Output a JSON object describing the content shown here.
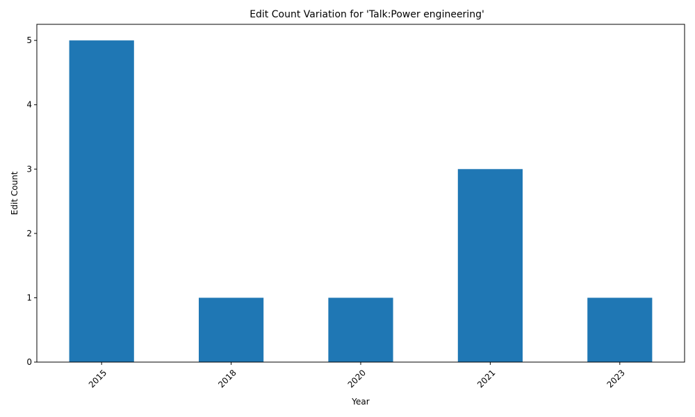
{
  "chart_data": {
    "type": "bar",
    "title": "Edit Count Variation for 'Talk:Power engineering'",
    "xlabel": "Year",
    "ylabel": "Edit Count",
    "categories": [
      "2015",
      "2018",
      "2020",
      "2021",
      "2023"
    ],
    "values": [
      5,
      1,
      1,
      3,
      1
    ],
    "ylim": [
      0,
      5.25
    ],
    "yticks": [
      0,
      1,
      2,
      3,
      4,
      5
    ],
    "bar_color": "#1f77b4",
    "grid": false,
    "xtick_rotation": 45
  }
}
